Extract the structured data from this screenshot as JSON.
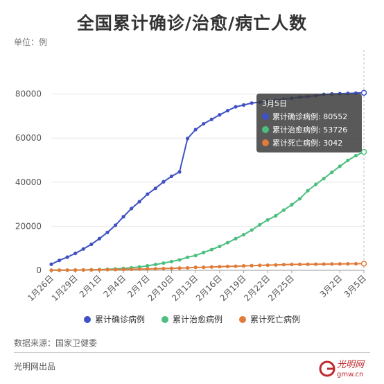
{
  "header": {
    "title": "全国累计确诊/治愈/病亡人数",
    "unit": "单位：例"
  },
  "chart_data": {
    "type": "line",
    "x": [
      "1月26日",
      "1月27日",
      "1月28日",
      "1月29日",
      "1月30日",
      "1月31日",
      "2月1日",
      "2月2日",
      "2月3日",
      "2月4日",
      "2月5日",
      "2月6日",
      "2月7日",
      "2月8日",
      "2月9日",
      "2月10日",
      "2月11日",
      "2月12日",
      "2月13日",
      "2月14日",
      "2月15日",
      "2月16日",
      "2月17日",
      "2月18日",
      "2月19日",
      "2月20日",
      "2月21日",
      "2月22日",
      "2月23日",
      "2月24日",
      "2月25日",
      "2月26日",
      "2月27日",
      "2月28日",
      "2月29日",
      "3月1日",
      "3月2日",
      "3月3日",
      "3月4日",
      "3月5日"
    ],
    "x_tick_labels": [
      "1月26日",
      "1月29日",
      "2月1日",
      "2月4日",
      "2月7日",
      "2月10日",
      "2月13日",
      "2月16日",
      "2月19日",
      "2月22日",
      "2月25日",
      "3月2日",
      "3月5日"
    ],
    "x_tick_indices": [
      0,
      3,
      6,
      9,
      12,
      15,
      18,
      21,
      24,
      27,
      30,
      36,
      39
    ],
    "ylim": [
      0,
      100000
    ],
    "y_ticks": [
      0,
      20000,
      40000,
      60000,
      80000
    ],
    "grid": "horizontal",
    "series": [
      {
        "name": "累计确诊病例",
        "color": "#3f51c4",
        "values": [
          2744,
          4515,
          5974,
          7711,
          9692,
          11791,
          14380,
          17205,
          20438,
          24324,
          28018,
          31161,
          34546,
          37198,
          40171,
          42638,
          44653,
          59804,
          63851,
          66492,
          68500,
          70548,
          72436,
          74185,
          75002,
          75891,
          76288,
          76936,
          77150,
          77658,
          78064,
          78497,
          78824,
          79251,
          79824,
          80026,
          80151,
          80270,
          80409,
          80552
        ]
      },
      {
        "name": "累计治愈病例",
        "color": "#4cbf80",
        "values": [
          51,
          60,
          103,
          124,
          171,
          243,
          328,
          475,
          632,
          892,
          1153,
          1540,
          2050,
          2649,
          3281,
          3996,
          4740,
          5911,
          6723,
          8096,
          9419,
          10844,
          12552,
          14376,
          16155,
          18264,
          20659,
          22888,
          24734,
          27323,
          29745,
          32495,
          36117,
          39002,
          41625,
          44462,
          47204,
          49856,
          52045,
          53726
        ]
      },
      {
        "name": "累计死亡病例",
        "color": "#e07b39",
        "values": [
          56,
          80,
          106,
          132,
          170,
          213,
          259,
          304,
          361,
          425,
          490,
          563,
          636,
          722,
          811,
          908,
          1016,
          1113,
          1367,
          1380,
          1523,
          1665,
          1770,
          1868,
          2004,
          2118,
          2236,
          2345,
          2442,
          2592,
          2663,
          2715,
          2744,
          2788,
          2835,
          2870,
          2912,
          2943,
          2981,
          3042
        ]
      }
    ]
  },
  "tooltip": {
    "date": "3月5日",
    "rows": [
      {
        "label": "累计确诊病例: 80552",
        "color": "#3f51c4"
      },
      {
        "label": "累计治愈病例: 53726",
        "color": "#4cbf80"
      },
      {
        "label": "累计死亡病例: 3042",
        "color": "#e07b39"
      }
    ]
  },
  "legend": [
    {
      "label": "累计确诊病例",
      "color": "#3f51c4"
    },
    {
      "label": "累计治愈病例",
      "color": "#4cbf80"
    },
    {
      "label": "累计死亡病例",
      "color": "#e07b39"
    }
  ],
  "footer": {
    "source": "数据来源：国家卫健委",
    "credit": "光明网出品",
    "logo_text": "光明网",
    "logo_domain": "gmw.cn"
  }
}
